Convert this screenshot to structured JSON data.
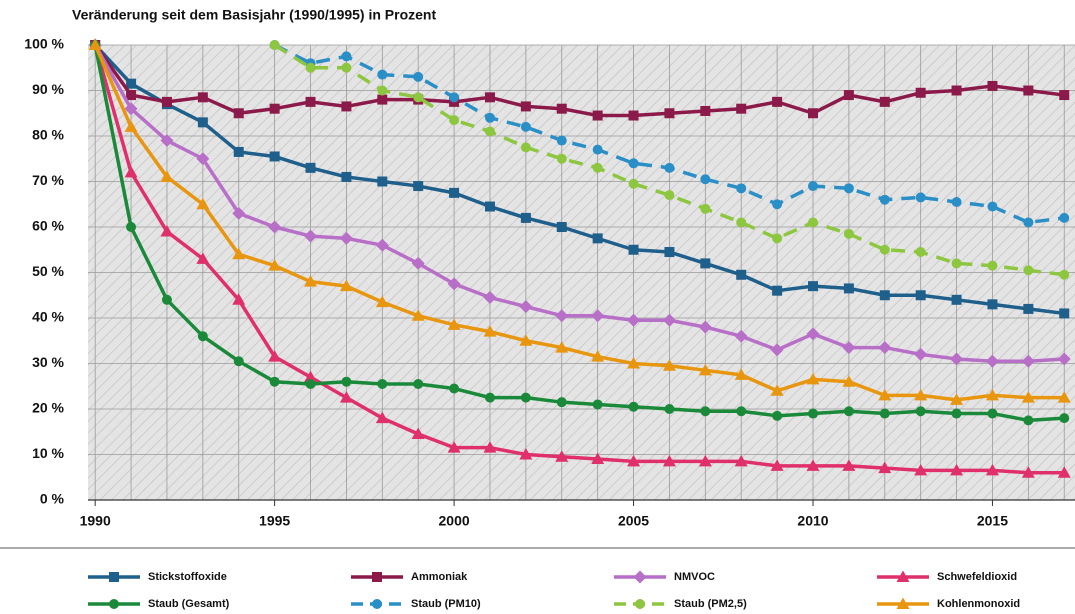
{
  "chart_data": {
    "type": "line",
    "title": "Veränderung seit dem Basisjahr (1990/1995) in Prozent",
    "x": [
      1990,
      1991,
      1992,
      1993,
      1994,
      1995,
      1996,
      1997,
      1998,
      1999,
      2000,
      2001,
      2002,
      2003,
      2004,
      2005,
      2006,
      2007,
      2008,
      2009,
      2010,
      2011,
      2012,
      2013,
      2014,
      2015,
      2016,
      2017
    ],
    "xlim": [
      1989.8,
      2017.3
    ],
    "xticks": [
      1990,
      1995,
      2000,
      2005,
      2010,
      2015
    ],
    "ylim": [
      0,
      100
    ],
    "yticks": [
      {
        "value": 0,
        "label": "0 %"
      },
      {
        "value": 10,
        "label": "10 %"
      },
      {
        "value": 20,
        "label": "20 %"
      },
      {
        "value": 30,
        "label": "30 %"
      },
      {
        "value": 40,
        "label": "40 %"
      },
      {
        "value": 50,
        "label": "50 %"
      },
      {
        "value": 60,
        "label": "60 %"
      },
      {
        "value": 70,
        "label": "70 %"
      },
      {
        "value": 80,
        "label": "80 %"
      },
      {
        "value": 90,
        "label": "90 %"
      },
      {
        "value": 100,
        "label": "100 %"
      }
    ],
    "grid": true,
    "legend": "bottom",
    "series": [
      {
        "name": "Stickstoffoxide",
        "color": "#1f5f8b",
        "marker": "square",
        "dashed": false,
        "values": [
          100,
          91.5,
          87,
          83,
          76.5,
          75.5,
          73,
          71,
          70,
          69,
          67.5,
          64.5,
          62,
          60,
          57.5,
          55,
          54.5,
          52,
          49.5,
          46,
          47,
          46.5,
          45,
          45,
          44,
          43,
          42,
          41
        ]
      },
      {
        "name": "Ammoniak",
        "color": "#8b1a4a",
        "marker": "square",
        "dashed": false,
        "values": [
          100,
          89,
          87.5,
          88.5,
          85,
          86,
          87.5,
          86.5,
          88,
          88,
          87.5,
          88.5,
          86.5,
          86,
          84.5,
          84.5,
          85,
          85.5,
          86,
          87.5,
          85,
          89,
          87.5,
          89.5,
          90,
          91,
          90,
          89
        ]
      },
      {
        "name": "NMVOC",
        "color": "#b86fc7",
        "marker": "diamond",
        "dashed": false,
        "values": [
          100,
          86,
          79,
          75,
          63,
          60,
          58,
          57.5,
          56,
          52,
          47.5,
          44.5,
          42.5,
          40.5,
          40.5,
          39.5,
          39.5,
          38,
          36,
          33,
          36.5,
          33.5,
          33.5,
          32,
          31,
          30.5,
          30.5,
          31
        ]
      },
      {
        "name": "Schwefeldioxid",
        "color": "#e0306b",
        "marker": "triangle",
        "dashed": false,
        "values": [
          100,
          72,
          59,
          53,
          44,
          31.5,
          27,
          22.5,
          18,
          14.5,
          11.5,
          11.5,
          10,
          9.5,
          9,
          8.5,
          8.5,
          8.5,
          8.5,
          7.5,
          7.5,
          7.5,
          7,
          6.5,
          6.5,
          6.5,
          6,
          6
        ]
      },
      {
        "name": "Staub (Gesamt)",
        "color": "#1a8a3a",
        "marker": "circle",
        "dashed": false,
        "values": [
          100,
          60,
          44,
          36,
          30.5,
          26,
          25.5,
          26,
          25.5,
          25.5,
          24.5,
          22.5,
          22.5,
          21.5,
          21,
          20.5,
          20,
          19.5,
          19.5,
          18.5,
          19,
          19.5,
          19,
          19.5,
          19,
          19,
          17.5,
          18
        ]
      },
      {
        "name": "Staub (PM10)",
        "color": "#2a8fc7",
        "marker": "circle",
        "dashed": true,
        "values": [
          null,
          null,
          null,
          null,
          null,
          100,
          96,
          97.5,
          93.5,
          93,
          88.5,
          84,
          82,
          79,
          77,
          74,
          73,
          70.5,
          68.5,
          65,
          69,
          68.5,
          66,
          66.5,
          65.5,
          64.5,
          61,
          62
        ]
      },
      {
        "name": "Staub (PM2,5)",
        "color": "#8dc63f",
        "marker": "circle",
        "dashed": true,
        "values": [
          null,
          null,
          null,
          null,
          null,
          100,
          95,
          95,
          90,
          88.5,
          83.5,
          81,
          77.5,
          75,
          73,
          69.5,
          67,
          64,
          61,
          57.5,
          61,
          58.5,
          55,
          54.5,
          52,
          51.5,
          50.5,
          49.5
        ]
      },
      {
        "name": "Kohlenmonoxid",
        "color": "#e8960f",
        "marker": "triangle",
        "dashed": false,
        "values": [
          100,
          82,
          71,
          65,
          54,
          51.5,
          48,
          47,
          43.5,
          40.5,
          38.5,
          37,
          35,
          33.5,
          31.5,
          30,
          29.5,
          28.5,
          27.5,
          24,
          26.5,
          26,
          23,
          23,
          22,
          23,
          22.5,
          22.5
        ]
      }
    ]
  }
}
